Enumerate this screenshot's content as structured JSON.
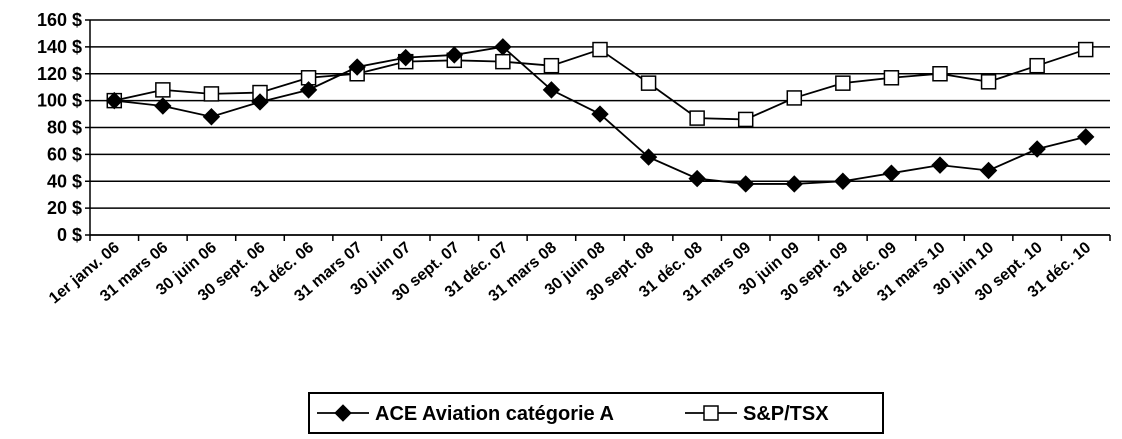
{
  "chart_data": {
    "type": "line",
    "categories": [
      "1er janv. 06",
      "31 mars 06",
      "30 juin 06",
      "30 sept. 06",
      "31 déc. 06",
      "31 mars 07",
      "30 juin 07",
      "30 sept. 07",
      "31 déc. 07",
      "31 mars 08",
      "30 juin 08",
      "30 sept. 08",
      "31 déc. 08",
      "31 mars 09",
      "30 juin 09",
      "30 sept. 09",
      "31 déc. 09",
      "31 mars 10",
      "30 juin 10",
      "30 sept. 10",
      "31 déc. 10"
    ],
    "series": [
      {
        "name": "ACE Aviation catégorie A",
        "marker": "diamond-filled",
        "color": "#000000",
        "values": [
          100,
          96,
          88,
          99,
          108,
          125,
          132,
          134,
          140,
          108,
          90,
          58,
          42,
          38,
          38,
          40,
          46,
          52,
          48,
          64,
          73
        ]
      },
      {
        "name": "S&P/TSX",
        "marker": "square-open",
        "color": "#000000",
        "values": [
          100,
          108,
          105,
          106,
          117,
          120,
          129,
          130,
          129,
          126,
          138,
          113,
          87,
          86,
          102,
          113,
          117,
          120,
          114,
          126,
          138
        ]
      }
    ],
    "yticks": [
      "0 $",
      "20 $",
      "40 $",
      "60 $",
      "80 $",
      "100 $",
      "120 $",
      "140 $",
      "160 $"
    ],
    "ylim": [
      0,
      160
    ],
    "ystep": 20,
    "grid": true,
    "legend_position": "bottom-center"
  }
}
